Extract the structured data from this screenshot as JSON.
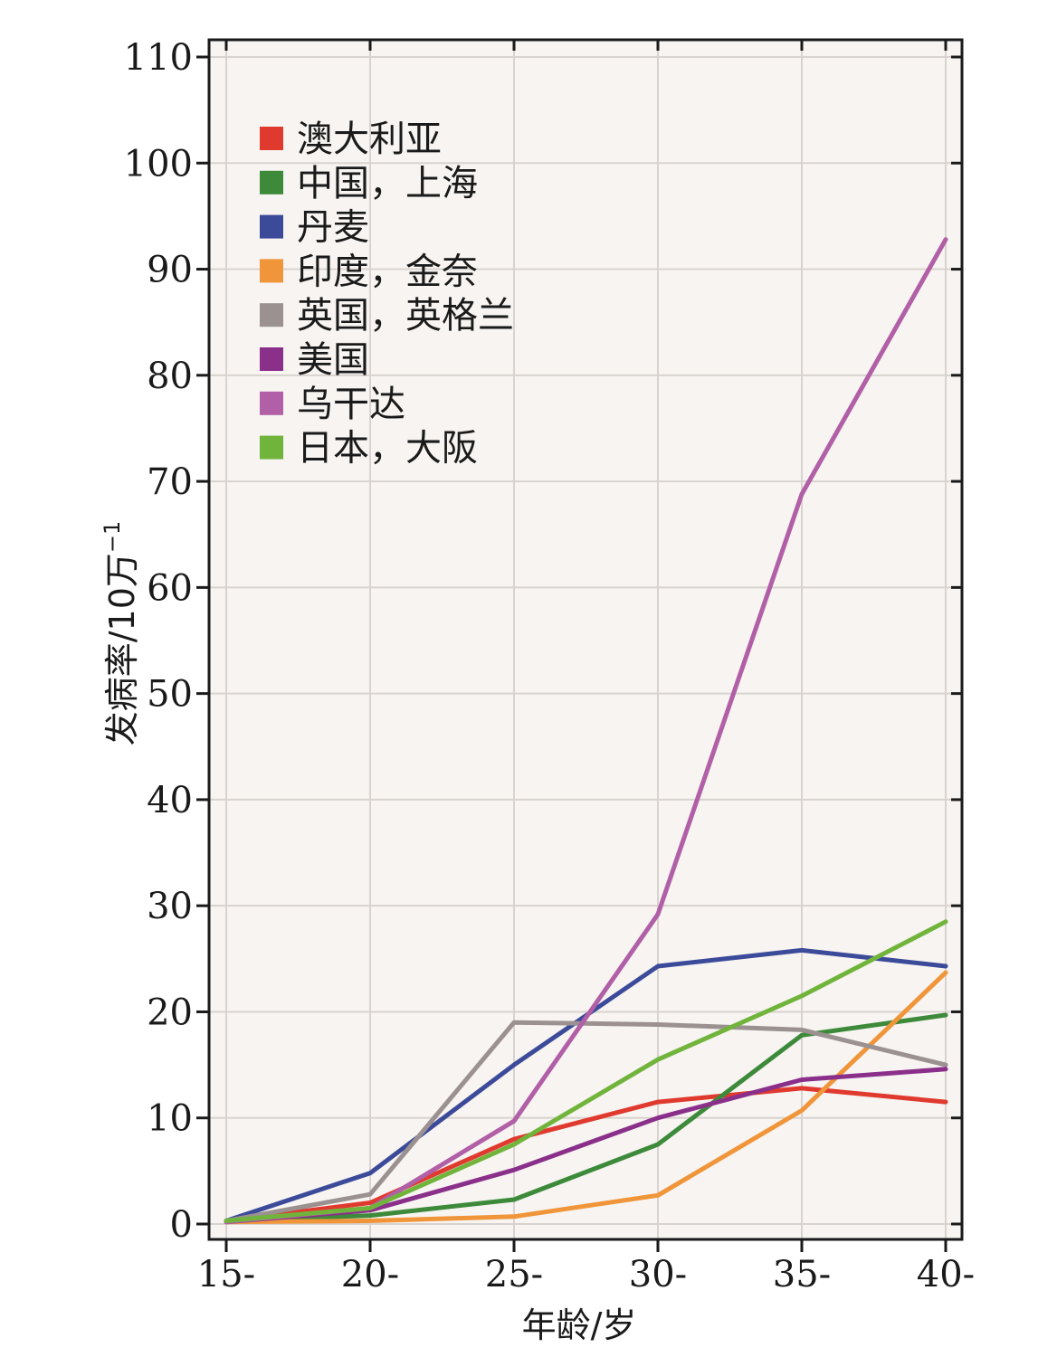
{
  "chart_data": {
    "type": "line",
    "xlabel": "年龄/岁",
    "ylabel_main": "发病率/10万",
    "ylabel_sup": "−1",
    "categories": [
      "15-",
      "20-",
      "25-",
      "30-",
      "35-",
      "40-"
    ],
    "ylim": [
      0,
      110
    ],
    "yticks": [
      0,
      10,
      20,
      30,
      40,
      50,
      60,
      70,
      80,
      90,
      100,
      110
    ],
    "grid": true,
    "legend_position": "top-left",
    "series": [
      {
        "name": "澳大利亚",
        "color": "#e03a2f",
        "values": [
          0.3,
          2.0,
          8.0,
          11.5,
          12.8,
          11.5
        ]
      },
      {
        "name": "中国，上海",
        "color": "#3d8a3a",
        "values": [
          0.3,
          0.8,
          2.3,
          7.5,
          17.8,
          19.7
        ]
      },
      {
        "name": "丹麦",
        "color": "#3c4a9a",
        "values": [
          0.3,
          4.8,
          15.0,
          24.3,
          25.8,
          24.3
        ]
      },
      {
        "name": "印度，金奈",
        "color": "#f0953a",
        "values": [
          0.2,
          0.3,
          0.7,
          2.7,
          10.7,
          23.7
        ]
      },
      {
        "name": "英国，英格兰",
        "color": "#9a9190",
        "values": [
          0.3,
          2.8,
          19.0,
          18.8,
          18.3,
          15.0
        ]
      },
      {
        "name": "美国",
        "color": "#8a2f8a",
        "values": [
          0.2,
          1.3,
          5.1,
          10.0,
          13.6,
          14.6
        ]
      },
      {
        "name": "乌干达",
        "color": "#b15fa6",
        "values": [
          0.2,
          1.5,
          9.7,
          29.2,
          68.8,
          92.8
        ]
      },
      {
        "name": "日本，大阪",
        "color": "#71b43c",
        "values": [
          0.3,
          1.5,
          7.5,
          15.5,
          21.5,
          28.5
        ]
      }
    ]
  }
}
